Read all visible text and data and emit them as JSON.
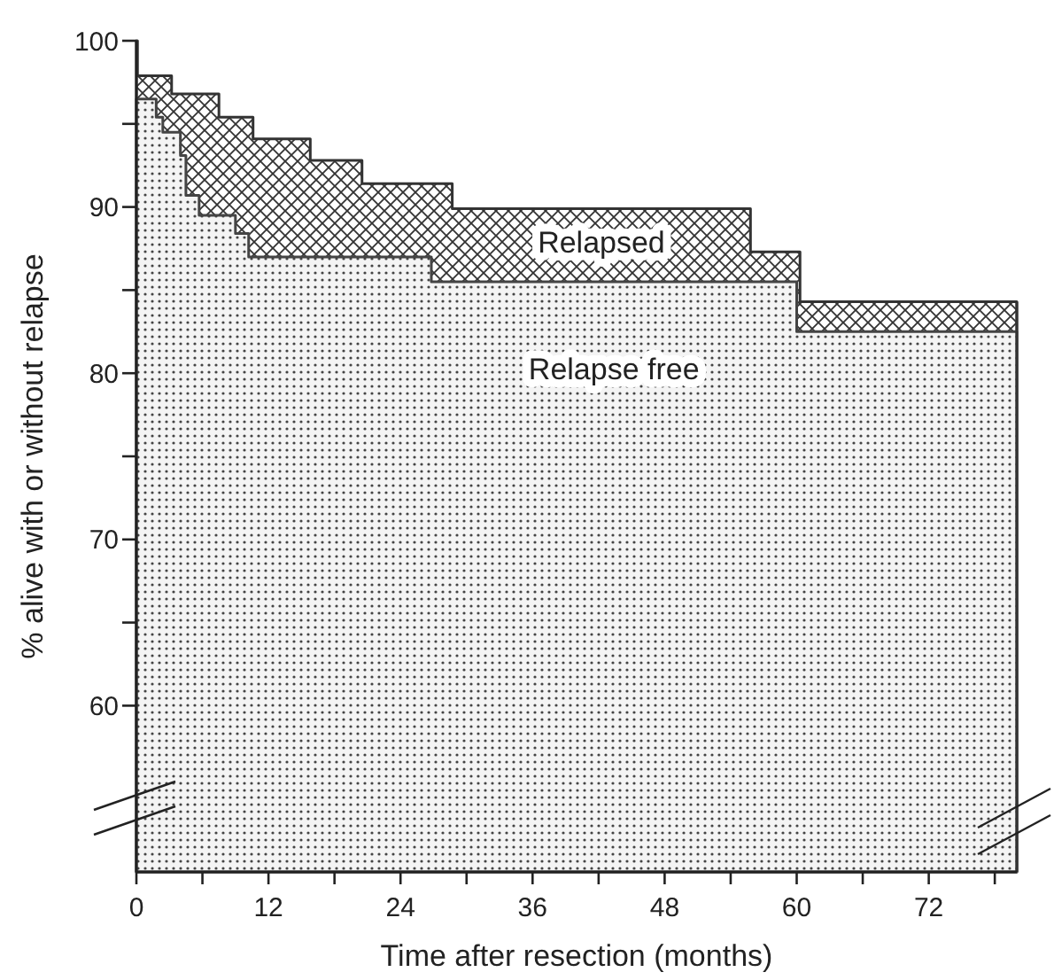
{
  "chart_data": {
    "type": "area",
    "xlabel": "Time after resection (months)",
    "ylabel": "% alive with or without relapse",
    "xlim": [
      0,
      80
    ],
    "xticks": [
      0,
      {
        "value": 6,
        "label": null
      },
      12,
      {
        "value": 18,
        "label": null
      },
      24,
      {
        "value": 30,
        "label": null
      },
      36,
      {
        "value": 42,
        "label": null
      },
      48,
      {
        "value": 54,
        "label": null
      },
      60,
      {
        "value": 66,
        "label": null
      },
      72,
      {
        "value": 78,
        "label": null
      }
    ],
    "ylim": [
      50,
      100
    ],
    "yticks": [
      60,
      {
        "value": 65,
        "label": null
      },
      70,
      {
        "value": 75,
        "label": null
      },
      80,
      {
        "value": 85,
        "label": null
      },
      90,
      {
        "value": 95,
        "label": null
      },
      100
    ],
    "series": [
      {
        "name": "Relapsed",
        "color": "#333333",
        "x": [
          0,
          0.1,
          3.2,
          7.5,
          10.6,
          15.8,
          20.5,
          28.7,
          55.8,
          60.3,
          80
        ],
        "values": [
          100,
          97.9,
          96.8,
          95.4,
          94.1,
          92.8,
          91.4,
          89.9,
          87.3,
          84.3,
          84.3
        ]
      },
      {
        "name": "Relapse free",
        "color": "#444444",
        "x": [
          0,
          1.8,
          2.4,
          4.0,
          4.5,
          5.7,
          9.0,
          10.2,
          26.8,
          60.0,
          80
        ],
        "values": [
          96.5,
          95.4,
          94.5,
          93.1,
          90.7,
          89.5,
          88.4,
          87.0,
          85.5,
          82.5,
          82.5
        ]
      }
    ]
  }
}
